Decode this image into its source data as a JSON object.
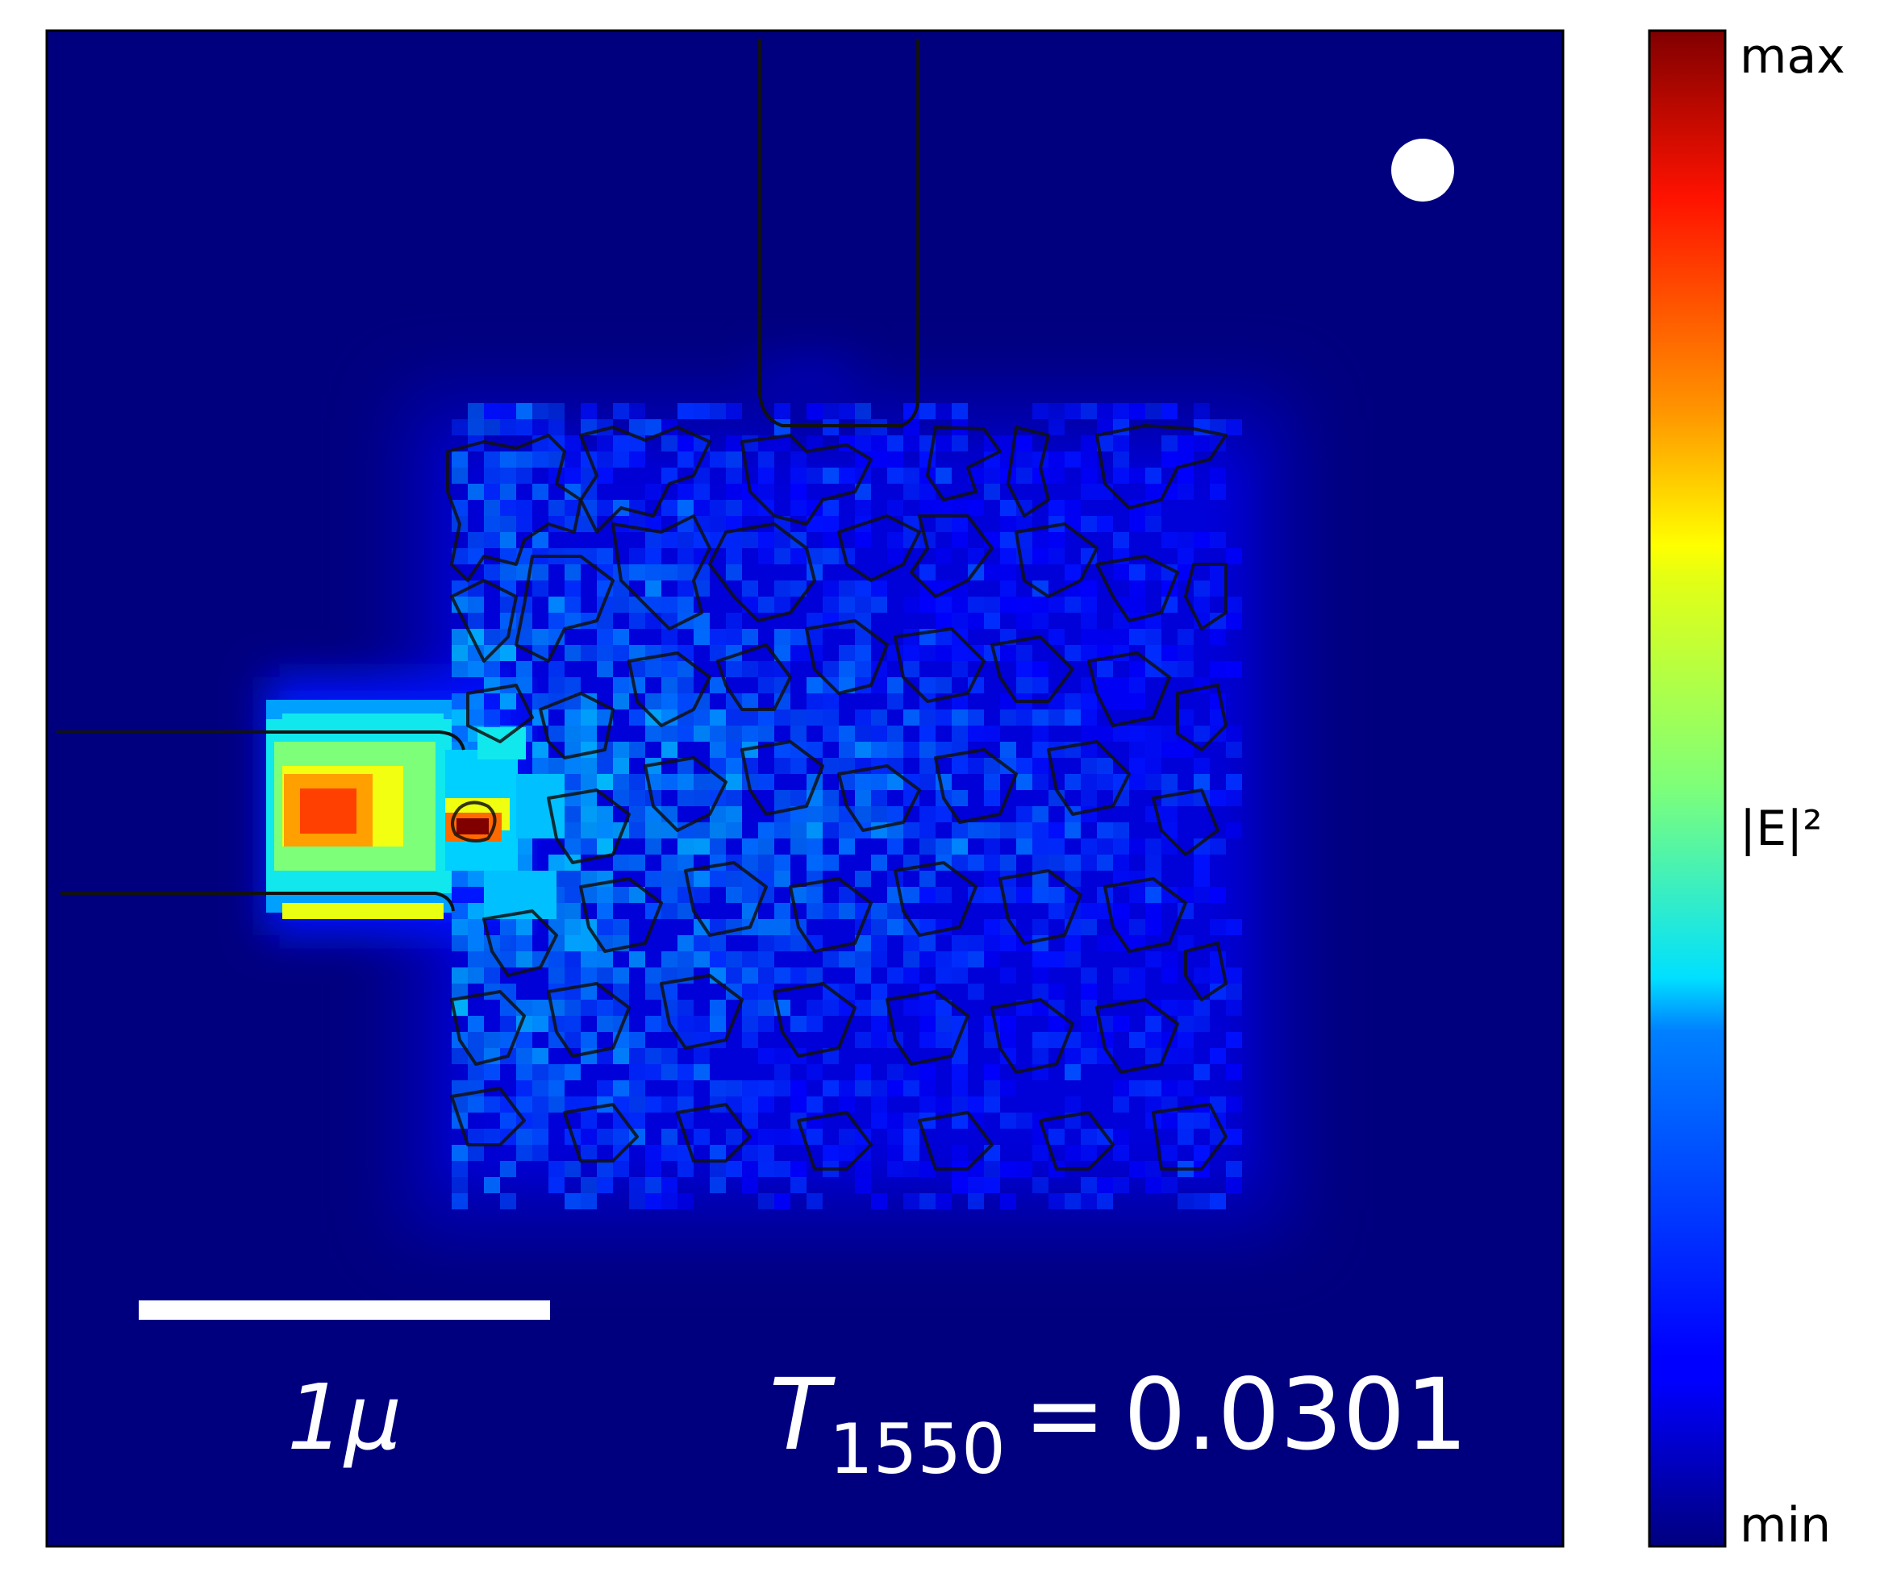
{
  "chart_data": {
    "type": "heatmap",
    "title": "",
    "quantity": "|E|²",
    "colormap": "jet",
    "colorbar": {
      "max_label": "max",
      "mid_label": "|E|²",
      "min_label": "min",
      "ticks": []
    },
    "axes": {
      "xticks": [],
      "yticks": [],
      "grid": false
    },
    "scalebar": {
      "label": "1μ",
      "length_um": 1
    },
    "transmission": {
      "symbol": "T",
      "subscript": "1550",
      "equals": "=",
      "value": "0.0301"
    },
    "source_marker": {
      "shape": "circle",
      "color": "#ffffff",
      "location": "top-right"
    },
    "structure": {
      "input_waveguide": "left",
      "output_waveguide": "top",
      "design_region": "center, random topology outlined in black"
    },
    "field_hotspots": [
      {
        "location": "input waveguide core",
        "relative_intensity": 0.85
      },
      {
        "location": "waveguide / design-region junction",
        "relative_intensity": 1.0
      }
    ]
  },
  "colors": {
    "background_field": "#00007f",
    "contour": "#111111",
    "annotation": "#ffffff"
  }
}
